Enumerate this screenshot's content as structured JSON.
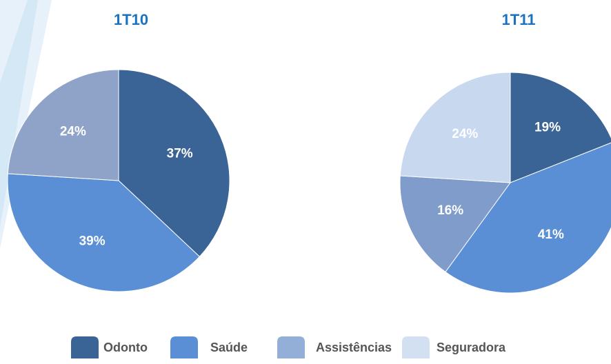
{
  "chart_data": [
    {
      "type": "pie",
      "title": "1T10",
      "categories": [
        "Odonto",
        "Saúde",
        "Assistências"
      ],
      "values": [
        37,
        39,
        24
      ],
      "value_labels": [
        "37%",
        "39%",
        "24%"
      ],
      "colors": [
        "#3a6396",
        "#5a8fd6",
        "#8fa3c8"
      ]
    },
    {
      "type": "pie",
      "title": "1T11",
      "categories": [
        "Odonto",
        "Saúde",
        "Assistências",
        "Seguradora"
      ],
      "values": [
        19,
        41,
        16,
        24
      ],
      "value_labels": [
        "19%",
        "41%",
        "16%",
        "24%"
      ],
      "colors": [
        "#3a6396",
        "#5a8fd6",
        "#7f9ccb",
        "#c8d8ef"
      ]
    }
  ],
  "legend": {
    "items": [
      {
        "name": "Odonto",
        "color": "#3a6396"
      },
      {
        "name": "Saúde",
        "color": "#5a8fd6"
      },
      {
        "name": "Assistências",
        "color": "#93afd8"
      },
      {
        "name": "Seguradora",
        "color": "#d3e0f2"
      }
    ]
  }
}
